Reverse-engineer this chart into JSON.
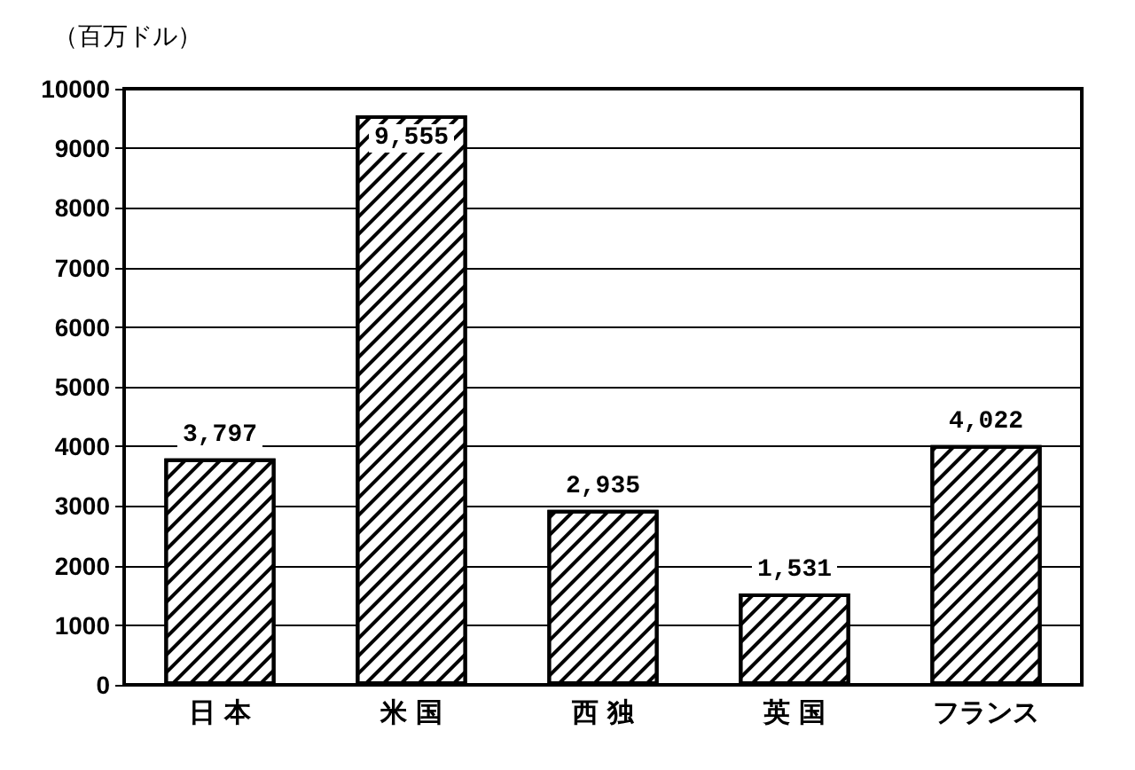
{
  "chart_data": {
    "type": "bar",
    "ylabel": "（百万ドル）",
    "categories": [
      "日 本",
      "米 国",
      "西 独",
      "英 国",
      "フランス"
    ],
    "values": [
      3797,
      9555,
      2935,
      1531,
      4022
    ],
    "value_labels": [
      "3,797",
      "9,555",
      "2,935",
      "1,531",
      "4,022"
    ],
    "color": "#000000",
    "ylim": [
      0,
      10000
    ],
    "yticks": [
      0,
      1000,
      2000,
      3000,
      4000,
      5000,
      6000,
      7000,
      8000,
      9000,
      10000
    ],
    "grid": "y"
  }
}
